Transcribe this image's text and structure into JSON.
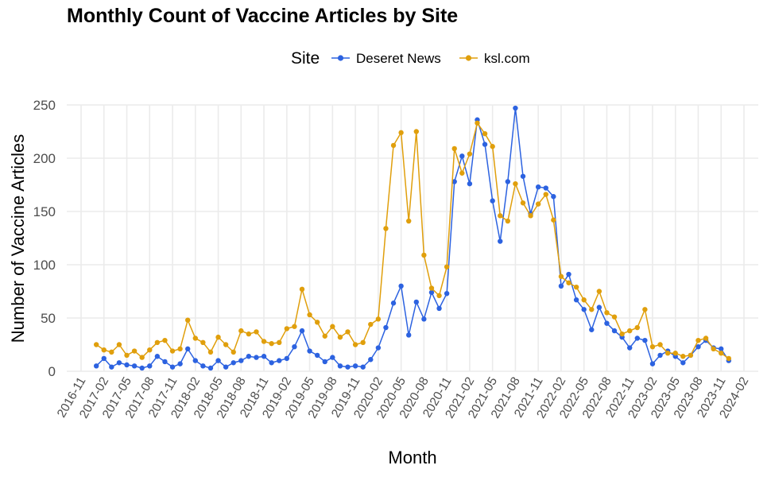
{
  "chart_data": {
    "type": "line",
    "title": "Monthly Count of Vaccine Articles by Site",
    "xlabel": "Month",
    "ylabel": "Number of Vaccine Articles",
    "ylim": [
      0,
      260
    ],
    "y_ticks": [
      0,
      50,
      100,
      150,
      200,
      250
    ],
    "x_ticks": [
      "2016-11",
      "2017-02",
      "2017-05",
      "2017-08",
      "2017-11",
      "2018-02",
      "2018-05",
      "2018-08",
      "2018-11",
      "2019-02",
      "2019-05",
      "2019-08",
      "2019-11",
      "2020-02",
      "2020-05",
      "2020-08",
      "2020-11",
      "2021-02",
      "2021-05",
      "2021-08",
      "2021-11",
      "2022-02",
      "2022-05",
      "2022-08",
      "2022-11",
      "2023-02",
      "2023-05",
      "2023-08",
      "2023-11",
      "2024-02"
    ],
    "x_start": "2017-01",
    "grid": true,
    "legend": {
      "title": "Site",
      "position": "top"
    },
    "series": [
      {
        "name": "Deseret News",
        "color": "#2c62e0",
        "values": [
          5,
          12,
          4,
          8,
          6,
          5,
          3,
          5,
          14,
          9,
          4,
          7,
          21,
          10,
          5,
          3,
          10,
          4,
          8,
          10,
          14,
          13,
          14,
          8,
          10,
          12,
          23,
          38,
          19,
          15,
          9,
          13,
          5,
          4,
          5,
          4,
          11,
          22,
          41,
          64,
          80,
          34,
          65,
          49,
          74,
          59,
          73,
          178,
          202,
          176,
          236,
          213,
          160,
          122,
          178,
          247,
          183,
          148,
          173,
          172,
          164,
          80,
          91,
          67,
          58,
          39,
          60,
          45,
          38,
          32,
          22,
          31,
          29,
          7,
          15,
          19,
          14,
          8,
          15,
          23,
          29,
          22,
          21,
          10
        ]
      },
      {
        "name": "ksl.com",
        "color": "#e09f0c",
        "values": [
          25,
          20,
          18,
          25,
          15,
          19,
          13,
          20,
          27,
          29,
          19,
          21,
          48,
          31,
          27,
          18,
          32,
          25,
          18,
          38,
          35,
          37,
          28,
          26,
          27,
          40,
          42,
          77,
          53,
          46,
          33,
          42,
          32,
          37,
          25,
          27,
          44,
          49,
          134,
          212,
          224,
          141,
          225,
          109,
          78,
          71,
          98,
          209,
          186,
          204,
          233,
          223,
          211,
          146,
          141,
          176,
          158,
          146,
          157,
          166,
          142,
          89,
          83,
          79,
          67,
          58,
          75,
          55,
          51,
          35,
          38,
          41,
          58,
          23,
          25,
          17,
          17,
          14,
          15,
          29,
          31,
          21,
          17,
          12
        ]
      }
    ]
  }
}
